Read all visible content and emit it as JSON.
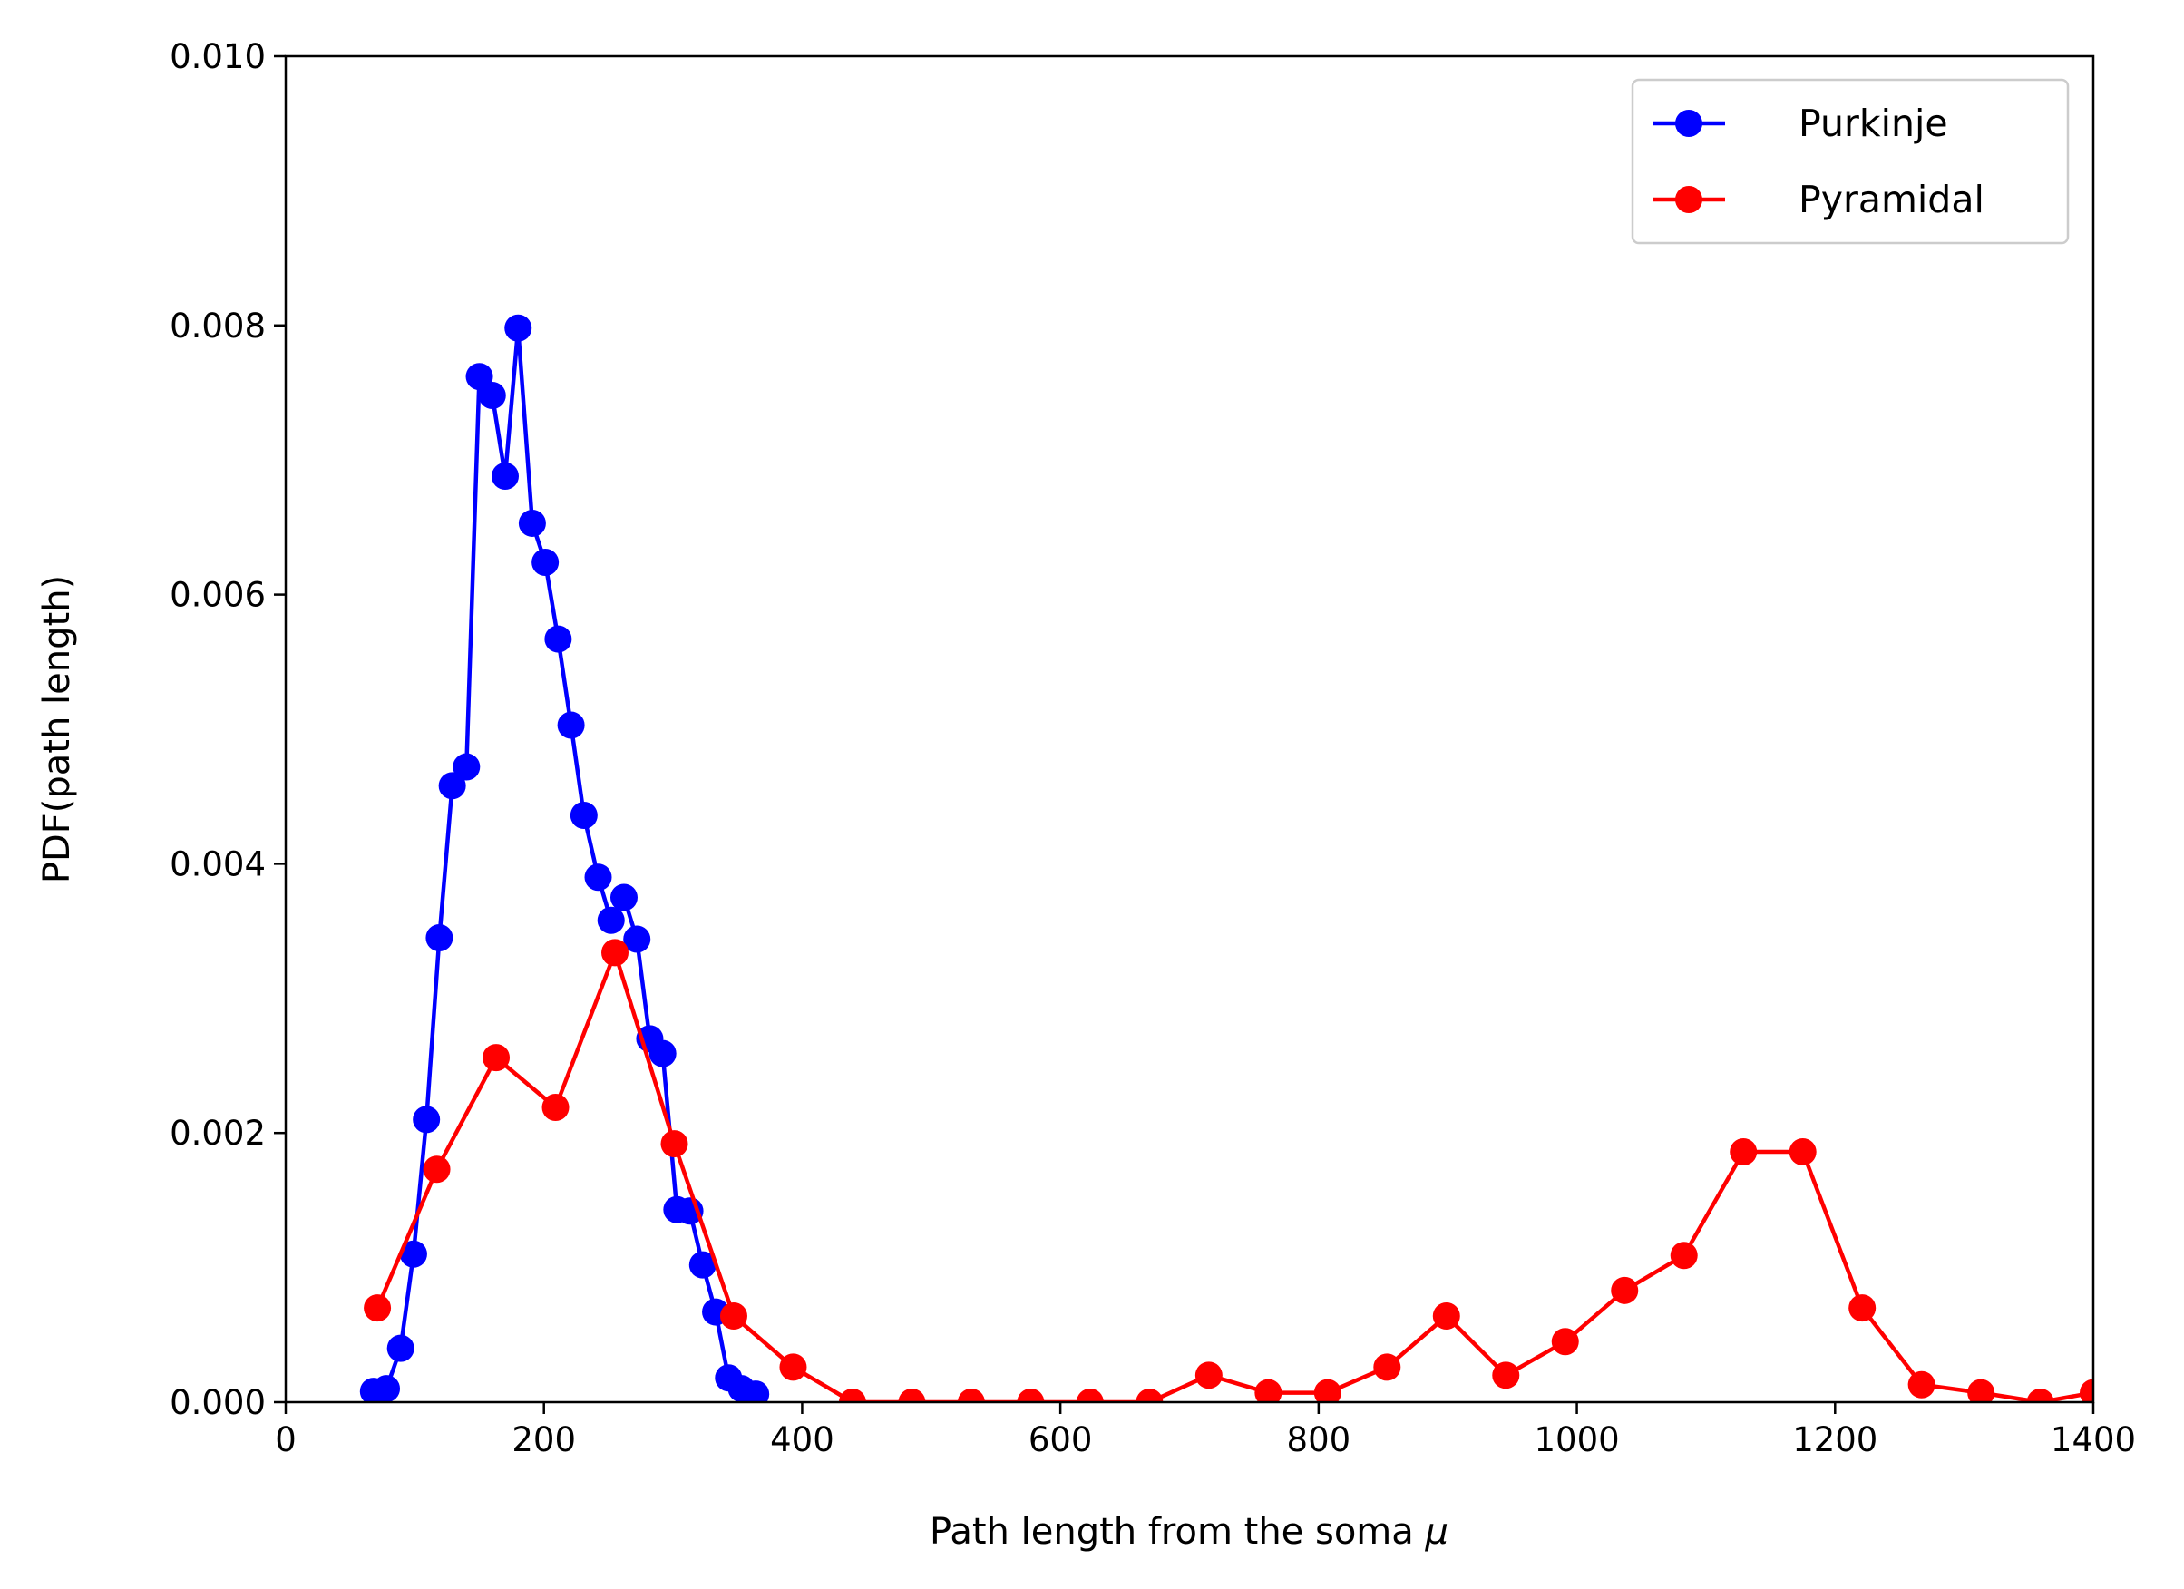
{
  "chart_data": {
    "type": "line",
    "xlabel_text": "Path length from the soma ",
    "xlabel_symbol": "μ",
    "ylabel": "PDF(path length)",
    "xlim": [
      0,
      1400
    ],
    "ylim": [
      0,
      0.01
    ],
    "xticks": [
      "0",
      "200",
      "400",
      "600",
      "800",
      "1000",
      "1200",
      "1400"
    ],
    "yticks": [
      "0.000",
      "0.002",
      "0.004",
      "0.006",
      "0.008",
      "0.010"
    ],
    "grid": false,
    "legend_position": "top-right",
    "series": [
      {
        "name": "Purkinje",
        "color": "#0000ff",
        "marker": "circle",
        "x": [
          68,
          78,
          89,
          99,
          109,
          119,
          129,
          140,
          150,
          160,
          170,
          180,
          191,
          201,
          211,
          221,
          231,
          242,
          252,
          262,
          272,
          282,
          292,
          303,
          313,
          323,
          333,
          343,
          353,
          364
        ],
        "y": [
          8e-05,
          0.0001,
          0.0004,
          0.0011,
          0.0021,
          0.00345,
          0.00458,
          0.00472,
          0.00762,
          0.00748,
          0.00688,
          0.00798,
          0.00653,
          0.00624,
          0.00567,
          0.00503,
          0.00436,
          0.0039,
          0.00358,
          0.00375,
          0.00344,
          0.0027,
          0.00259,
          0.00143,
          0.00142,
          0.00102,
          0.00067,
          0.00018,
          0.0001,
          6e-05
        ]
      },
      {
        "name": "Pyramidal",
        "color": "#ff0000",
        "marker": "circle",
        "x": [
          71,
          117,
          163,
          209,
          255,
          301,
          347,
          393,
          439,
          485,
          531,
          577,
          623,
          669,
          715,
          761,
          807,
          853,
          899,
          945,
          991,
          1037,
          1083,
          1129,
          1175,
          1221,
          1267,
          1313,
          1359,
          1400
        ],
        "y": [
          0.0007,
          0.00173,
          0.00256,
          0.00219,
          0.00334,
          0.00192,
          0.00064,
          0.00026,
          0.0,
          0.0,
          0.0,
          0.0,
          0.0,
          0.0,
          0.0002,
          7e-05,
          7e-05,
          0.00026,
          0.00064,
          0.0002,
          0.00045,
          0.00083,
          0.00109,
          0.00186,
          0.00186,
          0.0007,
          0.00013,
          7e-05,
          0.0,
          7e-05
        ]
      }
    ]
  }
}
